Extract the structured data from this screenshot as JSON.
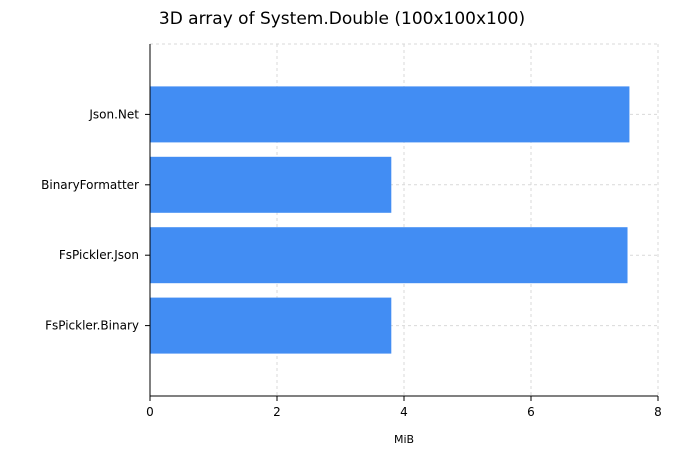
{
  "chart_data": {
    "type": "bar",
    "orientation": "horizontal",
    "title": "3D array of System.Double (100x100x100)",
    "xlabel": "MiB",
    "ylabel": "",
    "categories": [
      "Json.Net",
      "BinaryFormatter",
      "FsPickler.Json",
      "FsPickler.Binary"
    ],
    "values": [
      7.55,
      3.8,
      7.52,
      3.8
    ],
    "xlim": [
      0,
      8
    ],
    "xticks": [
      0,
      2,
      4,
      6,
      8
    ],
    "xtick_labels": [
      "0",
      "2",
      "4",
      "6",
      "8"
    ],
    "grid": true,
    "bar_color": "#428DF3",
    "grid_color": "#D9D9D9",
    "axis_color": "#000000"
  }
}
